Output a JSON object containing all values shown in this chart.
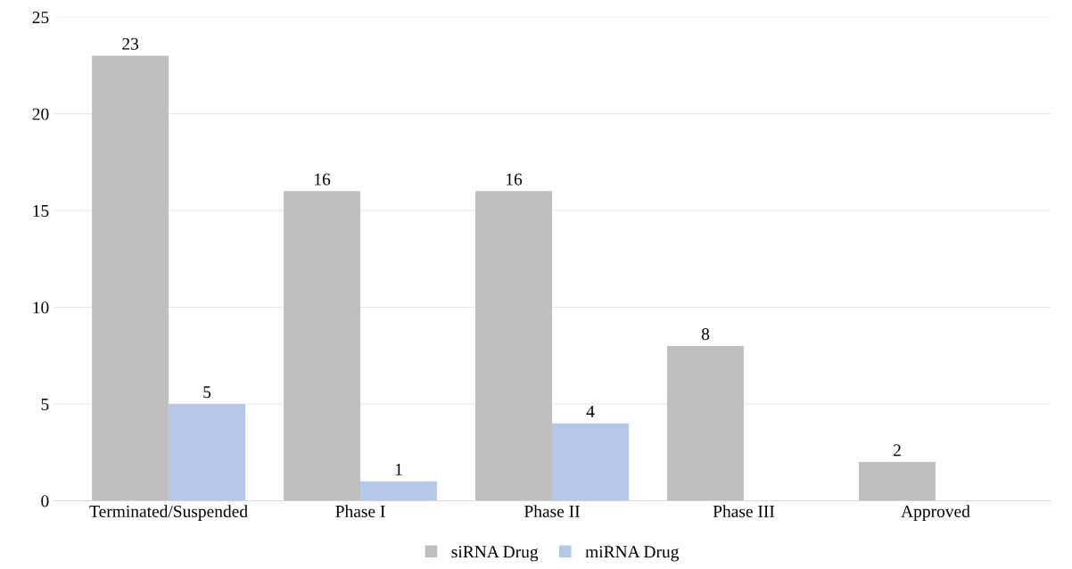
{
  "chart_data": {
    "type": "bar",
    "categories": [
      "Terminated/Suspended",
      "Phase I",
      "Phase II",
      "Phase III",
      "Approved"
    ],
    "series": [
      {
        "name": "siRNA Drug",
        "color": "#bfbfbf",
        "values": [
          23,
          16,
          16,
          8,
          2
        ]
      },
      {
        "name": "miRNA Drug",
        "color": "#b4c7e7",
        "values": [
          5,
          1,
          4,
          null,
          null
        ]
      }
    ],
    "ylim": [
      0,
      25
    ],
    "yticks": [
      0,
      5,
      10,
      15,
      20,
      25
    ],
    "grid": "y",
    "legend": "bottom",
    "data_labels": true
  }
}
